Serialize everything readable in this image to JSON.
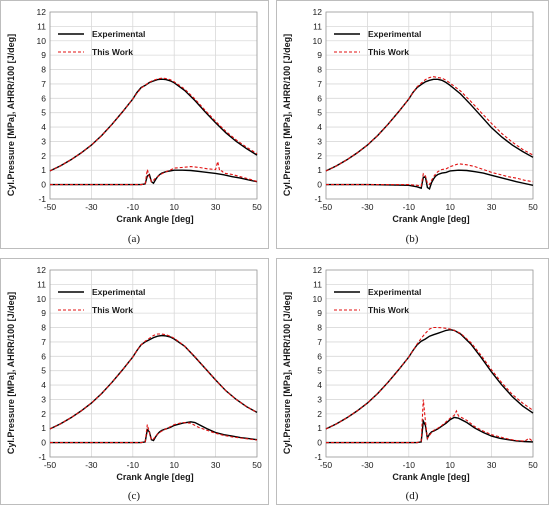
{
  "colors": {
    "experimental": "#000000",
    "this_work": "#e01010",
    "grid": "#d9d9d9",
    "frame": "#bdbdbd"
  },
  "chart_data": [
    {
      "type": "line",
      "caption": "(a)",
      "xlabel": "Crank Angle [deg]",
      "ylabel": "Cyl.Pressure [MPa], AHRR/100 [J/deg]",
      "xlim": [
        -50,
        50
      ],
      "ylim": [
        -1,
        12
      ],
      "xticks": [
        -50,
        -30,
        -10,
        10,
        30,
        50
      ],
      "yticks": [
        -1,
        0,
        1,
        2,
        3,
        4,
        5,
        6,
        7,
        8,
        9,
        10,
        11,
        12
      ],
      "grid": true,
      "legend_position": "top-left",
      "series": [
        {
          "name": "Experimental",
          "style": "solid",
          "color": "#000000",
          "x": [
            -50,
            -45,
            -40,
            -35,
            -30,
            -25,
            -20,
            -15,
            -10,
            -8,
            -6,
            -4,
            -2,
            0,
            2,
            4,
            6,
            8,
            10,
            15,
            20,
            25,
            30,
            35,
            40,
            45,
            50
          ],
          "y": [
            0.95,
            1.3,
            1.72,
            2.2,
            2.75,
            3.42,
            4.2,
            5.05,
            5.95,
            6.4,
            6.75,
            6.9,
            7.1,
            7.2,
            7.3,
            7.33,
            7.3,
            7.22,
            7.08,
            6.55,
            5.85,
            5.05,
            4.3,
            3.6,
            3.0,
            2.5,
            2.05
          ]
        },
        {
          "name": "This Work",
          "style": "dashed",
          "color": "#e01010",
          "x": [
            -50,
            -45,
            -40,
            -35,
            -30,
            -25,
            -20,
            -15,
            -10,
            -8,
            -6,
            -4,
            -2,
            0,
            2,
            4,
            6,
            8,
            10,
            15,
            20,
            25,
            30,
            35,
            40,
            45,
            50
          ],
          "y": [
            0.95,
            1.3,
            1.72,
            2.2,
            2.75,
            3.42,
            4.2,
            5.05,
            5.95,
            6.35,
            6.7,
            6.92,
            7.12,
            7.25,
            7.35,
            7.4,
            7.38,
            7.3,
            7.15,
            6.65,
            5.95,
            5.15,
            4.4,
            3.7,
            3.1,
            2.6,
            2.15
          ]
        },
        {
          "name": "Experimental",
          "style": "solid",
          "color": "#000000",
          "x": [
            -50,
            -30,
            -10,
            -6,
            -4,
            -3,
            -2,
            -1,
            0,
            1,
            2,
            3,
            4,
            6,
            8,
            10,
            14,
            18,
            22,
            26,
            30,
            34,
            38,
            42,
            46,
            50
          ],
          "y": [
            0,
            0,
            0,
            0,
            0.05,
            0.6,
            0.7,
            0.2,
            0.1,
            0.35,
            0.55,
            0.7,
            0.8,
            0.9,
            0.95,
            1.0,
            1.0,
            0.98,
            0.92,
            0.85,
            0.78,
            0.68,
            0.55,
            0.45,
            0.32,
            0.2
          ]
        },
        {
          "name": "This Work",
          "style": "dashed",
          "color": "#e01010",
          "x": [
            -50,
            -30,
            -10,
            -6,
            -4,
            -3,
            -2,
            -1,
            0,
            1,
            2,
            3,
            4,
            6,
            8,
            10,
            14,
            18,
            22,
            26,
            30,
            31,
            32,
            33,
            34,
            38,
            42,
            46,
            50
          ],
          "y": [
            0,
            0,
            0,
            0,
            0.05,
            1.05,
            0.55,
            0.2,
            0.3,
            0.45,
            0.55,
            0.65,
            0.75,
            0.9,
            1.0,
            1.15,
            1.2,
            1.25,
            1.2,
            1.1,
            1.05,
            1.6,
            0.95,
            0.95,
            0.8,
            0.7,
            0.55,
            0.4,
            0.22
          ]
        }
      ]
    },
    {
      "type": "line",
      "caption": "(b)",
      "xlabel": "Crank Angle [deg]",
      "ylabel": "Cyl.Pressure [MPa], AHRR/100 [J/deg]",
      "xlim": [
        -50,
        50
      ],
      "ylim": [
        -1,
        12
      ],
      "xticks": [
        -50,
        -30,
        -10,
        10,
        30,
        50
      ],
      "yticks": [
        -1,
        0,
        1,
        2,
        3,
        4,
        5,
        6,
        7,
        8,
        9,
        10,
        11,
        12
      ],
      "grid": true,
      "legend_position": "top-left",
      "series": [
        {
          "name": "Experimental",
          "style": "solid",
          "color": "#000000",
          "x": [
            -50,
            -45,
            -40,
            -35,
            -30,
            -25,
            -20,
            -15,
            -10,
            -8,
            -6,
            -4,
            -2,
            0,
            2,
            4,
            6,
            8,
            10,
            15,
            20,
            25,
            30,
            35,
            40,
            45,
            50
          ],
          "y": [
            0.95,
            1.3,
            1.72,
            2.2,
            2.75,
            3.42,
            4.2,
            5.05,
            5.95,
            6.4,
            6.75,
            6.95,
            7.15,
            7.25,
            7.32,
            7.32,
            7.25,
            7.1,
            6.9,
            6.3,
            5.55,
            4.75,
            3.95,
            3.3,
            2.75,
            2.3,
            1.9
          ]
        },
        {
          "name": "This Work",
          "style": "dashed",
          "color": "#e01010",
          "x": [
            -50,
            -45,
            -40,
            -35,
            -30,
            -25,
            -20,
            -15,
            -10,
            -8,
            -6,
            -4,
            -2,
            0,
            2,
            4,
            6,
            8,
            10,
            15,
            20,
            25,
            30,
            35,
            40,
            45,
            50
          ],
          "y": [
            0.95,
            1.3,
            1.72,
            2.2,
            2.75,
            3.42,
            4.2,
            5.05,
            5.95,
            6.4,
            6.8,
            7.05,
            7.3,
            7.45,
            7.5,
            7.45,
            7.4,
            7.25,
            7.05,
            6.5,
            5.78,
            5.0,
            4.25,
            3.55,
            2.95,
            2.45,
            2.05
          ]
        },
        {
          "name": "Experimental",
          "style": "solid",
          "color": "#000000",
          "x": [
            -50,
            -30,
            -10,
            -6,
            -4,
            -3,
            -2,
            -1,
            0,
            1,
            2,
            3,
            4,
            6,
            8,
            10,
            14,
            18,
            22,
            26,
            30,
            34,
            38,
            42,
            46,
            50
          ],
          "y": [
            0,
            0,
            -0.05,
            -0.15,
            -0.25,
            0.5,
            0.55,
            -0.2,
            -0.3,
            0.15,
            0.4,
            0.6,
            0.7,
            0.8,
            0.85,
            0.95,
            1.0,
            0.98,
            0.9,
            0.8,
            0.65,
            0.5,
            0.35,
            0.2,
            0.08,
            -0.05
          ]
        },
        {
          "name": "This Work",
          "style": "dashed",
          "color": "#e01010",
          "x": [
            -50,
            -30,
            -10,
            -6,
            -4,
            -3,
            -2,
            -1,
            0,
            1,
            2,
            3,
            4,
            6,
            8,
            10,
            14,
            18,
            22,
            26,
            30,
            34,
            38,
            42,
            46,
            50
          ],
          "y": [
            0,
            0,
            0,
            -0.05,
            -0.1,
            0.75,
            0.6,
            0.1,
            0.0,
            0.3,
            0.55,
            0.75,
            0.9,
            1.05,
            1.1,
            1.25,
            1.45,
            1.38,
            1.25,
            1.05,
            0.85,
            0.7,
            0.55,
            0.45,
            0.3,
            0.2
          ]
        }
      ]
    },
    {
      "type": "line",
      "caption": "(c)",
      "xlabel": "Crank Angle [deg]",
      "ylabel": "Cyl.Pressure [MPa], AHRR/100 [J/deg]",
      "xlim": [
        -50,
        50
      ],
      "ylim": [
        -1,
        12
      ],
      "xticks": [
        -50,
        -30,
        -10,
        10,
        30,
        50
      ],
      "yticks": [
        -1,
        0,
        1,
        2,
        3,
        4,
        5,
        6,
        7,
        8,
        9,
        10,
        11,
        12
      ],
      "grid": true,
      "legend_position": "top-left",
      "series": [
        {
          "name": "Experimental",
          "style": "solid",
          "color": "#000000",
          "x": [
            -50,
            -45,
            -40,
            -35,
            -30,
            -25,
            -20,
            -15,
            -10,
            -8,
            -6,
            -4,
            -2,
            0,
            2,
            4,
            6,
            8,
            10,
            15,
            20,
            25,
            30,
            35,
            40,
            45,
            50
          ],
          "y": [
            0.95,
            1.3,
            1.72,
            2.2,
            2.75,
            3.42,
            4.2,
            5.05,
            5.95,
            6.4,
            6.8,
            7.0,
            7.15,
            7.3,
            7.4,
            7.45,
            7.42,
            7.35,
            7.2,
            6.7,
            5.95,
            5.15,
            4.35,
            3.6,
            3.0,
            2.5,
            2.1
          ]
        },
        {
          "name": "This Work",
          "style": "dashed",
          "color": "#e01010",
          "x": [
            -50,
            -45,
            -40,
            -35,
            -30,
            -25,
            -20,
            -15,
            -10,
            -8,
            -6,
            -4,
            -2,
            0,
            2,
            4,
            6,
            8,
            10,
            15,
            20,
            25,
            30,
            35,
            40,
            45,
            50
          ],
          "y": [
            0.95,
            1.3,
            1.72,
            2.2,
            2.75,
            3.42,
            4.2,
            5.05,
            5.95,
            6.4,
            6.8,
            7.05,
            7.25,
            7.45,
            7.55,
            7.55,
            7.5,
            7.4,
            7.25,
            6.72,
            5.98,
            5.15,
            4.35,
            3.6,
            3.0,
            2.5,
            2.1
          ]
        },
        {
          "name": "Experimental",
          "style": "solid",
          "color": "#000000",
          "x": [
            -50,
            -30,
            -10,
            -6,
            -4,
            -3,
            -2,
            -1,
            0,
            1,
            2,
            3,
            4,
            6,
            8,
            10,
            14,
            18,
            20,
            22,
            26,
            30,
            34,
            38,
            42,
            46,
            50
          ],
          "y": [
            0,
            0,
            0,
            0,
            0.05,
            0.9,
            0.75,
            0.2,
            0.15,
            0.4,
            0.6,
            0.75,
            0.85,
            0.95,
            1.05,
            1.2,
            1.35,
            1.45,
            1.4,
            1.25,
            0.95,
            0.7,
            0.55,
            0.45,
            0.35,
            0.28,
            0.2
          ]
        },
        {
          "name": "This Work",
          "style": "dashed",
          "color": "#e01010",
          "x": [
            -50,
            -30,
            -10,
            -6,
            -4,
            -3,
            -2,
            -1,
            0,
            1,
            2,
            3,
            4,
            6,
            8,
            10,
            14,
            18,
            20,
            22,
            26,
            30,
            34,
            38,
            42,
            46,
            50
          ],
          "y": [
            0,
            0,
            0,
            0,
            0.05,
            1.25,
            0.7,
            0.2,
            0.25,
            0.45,
            0.6,
            0.7,
            0.8,
            0.95,
            1.1,
            1.25,
            1.4,
            1.35,
            1.2,
            1.05,
            0.85,
            0.65,
            0.5,
            0.4,
            0.32,
            0.25,
            0.18
          ]
        }
      ]
    },
    {
      "type": "line",
      "caption": "(d)",
      "xlabel": "Crank Angle [deg]",
      "ylabel": "Cyl.Pressure [MPa], AHRR/100 [J/deg]",
      "xlim": [
        -50,
        50
      ],
      "ylim": [
        -1,
        12
      ],
      "xticks": [
        -50,
        -30,
        -10,
        10,
        30,
        50
      ],
      "yticks": [
        -1,
        0,
        1,
        2,
        3,
        4,
        5,
        6,
        7,
        8,
        9,
        10,
        11,
        12
      ],
      "grid": true,
      "legend_position": "top-left",
      "series": [
        {
          "name": "Experimental",
          "style": "solid",
          "color": "#000000",
          "x": [
            -50,
            -45,
            -40,
            -35,
            -30,
            -25,
            -20,
            -15,
            -10,
            -8,
            -6,
            -4,
            -2,
            0,
            2,
            4,
            6,
            8,
            10,
            12,
            15,
            20,
            25,
            30,
            35,
            40,
            45,
            50
          ],
          "y": [
            0.95,
            1.3,
            1.72,
            2.2,
            2.75,
            3.42,
            4.2,
            5.05,
            5.95,
            6.4,
            6.8,
            7.05,
            7.2,
            7.4,
            7.5,
            7.6,
            7.7,
            7.8,
            7.85,
            7.8,
            7.55,
            6.85,
            5.9,
            4.9,
            4.0,
            3.2,
            2.55,
            2.05
          ]
        },
        {
          "name": "This Work",
          "style": "dashed",
          "color": "#e01010",
          "x": [
            -50,
            -45,
            -40,
            -35,
            -30,
            -25,
            -20,
            -15,
            -10,
            -8,
            -6,
            -4,
            -2,
            0,
            2,
            4,
            6,
            8,
            10,
            12,
            15,
            20,
            25,
            30,
            35,
            40,
            45,
            50
          ],
          "y": [
            0.95,
            1.3,
            1.72,
            2.2,
            2.75,
            3.42,
            4.2,
            5.05,
            5.95,
            6.4,
            6.85,
            7.25,
            7.6,
            7.9,
            8.0,
            8.0,
            7.98,
            7.95,
            7.9,
            7.8,
            7.6,
            6.95,
            6.05,
            5.05,
            4.15,
            3.35,
            2.75,
            2.25
          ]
        },
        {
          "name": "Experimental",
          "style": "solid",
          "color": "#000000",
          "x": [
            -50,
            -30,
            -10,
            -6,
            -4,
            -3,
            -2,
            -1,
            0,
            1,
            2,
            4,
            6,
            8,
            10,
            12,
            14,
            18,
            22,
            26,
            30,
            34,
            38,
            42,
            46,
            50
          ],
          "y": [
            0,
            0,
            0,
            0,
            0.05,
            1.5,
            1.2,
            0.3,
            0.6,
            0.75,
            0.8,
            0.95,
            1.15,
            1.35,
            1.6,
            1.75,
            1.7,
            1.4,
            1.0,
            0.7,
            0.45,
            0.3,
            0.2,
            0.12,
            0.08,
            0.05
          ]
        },
        {
          "name": "This Work",
          "style": "dashed",
          "color": "#e01010",
          "x": [
            -50,
            -30,
            -10,
            -6,
            -4,
            -3,
            -2,
            -1,
            0,
            1,
            2,
            4,
            6,
            8,
            10,
            12,
            13,
            14,
            18,
            22,
            26,
            30,
            34,
            38,
            42,
            46,
            48,
            50
          ],
          "y": [
            0,
            0,
            0,
            0,
            0.1,
            3.0,
            1.5,
            0.3,
            0.5,
            0.7,
            0.85,
            1.0,
            1.2,
            1.45,
            1.7,
            1.9,
            2.2,
            1.85,
            1.55,
            1.1,
            0.8,
            0.55,
            0.4,
            0.25,
            0.15,
            0.1,
            0.3,
            0.08
          ]
        }
      ]
    }
  ]
}
